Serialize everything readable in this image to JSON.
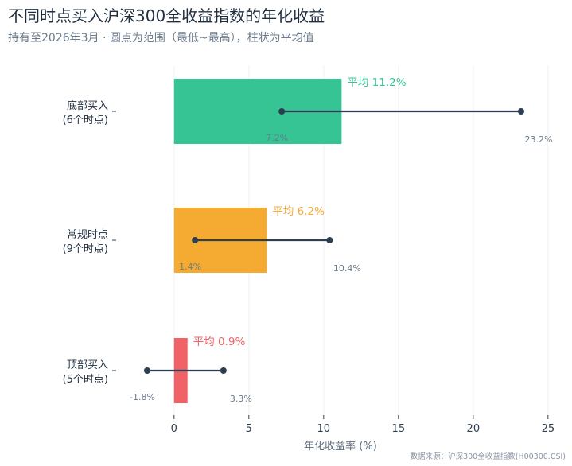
{
  "title": "不同时点买入沪深300全收益指数的年化收益",
  "subtitle": "持有至2026年3月 · 圆点为范围（最低~最高），柱状为平均值",
  "source": "数据来源：沪深300全收益指数(H00300.CSI)",
  "chart_data": {
    "type": "bar",
    "orientation": "horizontal",
    "xlabel": "年化收益率 (%)",
    "xlim": [
      -3.5,
      25.7
    ],
    "xticks": [
      0,
      5,
      10,
      15,
      20,
      25
    ],
    "grid": "vertical",
    "categories": [
      {
        "line1": "底部买入",
        "line2": "(6个时点)",
        "avg": 11.2,
        "avg_label": "平均 11.2%",
        "min": 7.2,
        "min_label": "7.2%",
        "max": 23.2,
        "max_label": "23.2%",
        "color": "#36c495"
      },
      {
        "line1": "常规时点",
        "line2": "(9个时点)",
        "avg": 6.2,
        "avg_label": "平均 6.2%",
        "min": 1.4,
        "min_label": "1.4%",
        "max": 10.4,
        "max_label": "10.4%",
        "color": "#f5ab32"
      },
      {
        "line1": "顶部买入",
        "line2": "(5个时点)",
        "avg": 0.9,
        "avg_label": "平均 0.9%",
        "min": -1.8,
        "min_label": "-1.8%",
        "max": 3.3,
        "max_label": "3.3%",
        "color": "#f06266"
      }
    ],
    "range_color": "#2c3e50"
  }
}
